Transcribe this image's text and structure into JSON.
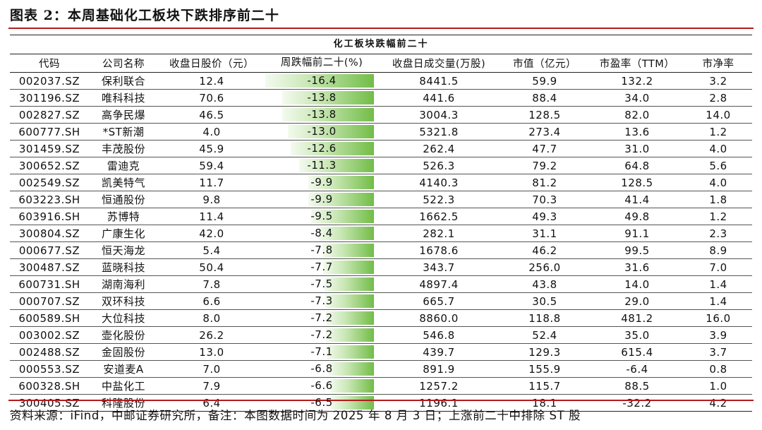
{
  "figure_title": "图表 2：本周基础化工板块下跌排序前二十",
  "table_title": "化工板块跌幅前二十",
  "headers": [
    "代码",
    "公司名称",
    "收盘日股价（元）",
    "周跌幅前二十(%)",
    "收盘日成交量(万股)",
    "市值（亿元）",
    "市盈率（TTM）",
    "市净率"
  ],
  "rows": [
    {
      "code": "002037.SZ",
      "name": "保利联合",
      "price": "12.4",
      "change": "-16.4",
      "volume": "8441.5",
      "mcap": "59.9",
      "pe": "132.2",
      "pb": "3.2"
    },
    {
      "code": "301196.SZ",
      "name": "唯科科技",
      "price": "70.6",
      "change": "-13.8",
      "volume": "441.6",
      "mcap": "88.4",
      "pe": "34.0",
      "pb": "2.8"
    },
    {
      "code": "002827.SZ",
      "name": "高争民爆",
      "price": "46.5",
      "change": "-13.8",
      "volume": "3004.3",
      "mcap": "128.5",
      "pe": "82.0",
      "pb": "14.0"
    },
    {
      "code": "600777.SH",
      "name": "*ST新潮",
      "price": "4.0",
      "change": "-13.0",
      "volume": "5321.8",
      "mcap": "273.4",
      "pe": "13.6",
      "pb": "1.2"
    },
    {
      "code": "301459.SZ",
      "name": "丰茂股份",
      "price": "45.9",
      "change": "-12.6",
      "volume": "262.4",
      "mcap": "47.7",
      "pe": "31.0",
      "pb": "4.0"
    },
    {
      "code": "300652.SZ",
      "name": "雷迪克",
      "price": "59.4",
      "change": "-11.3",
      "volume": "526.3",
      "mcap": "79.2",
      "pe": "64.8",
      "pb": "5.6"
    },
    {
      "code": "002549.SZ",
      "name": "凯美特气",
      "price": "11.7",
      "change": "-9.9",
      "volume": "4140.3",
      "mcap": "81.2",
      "pe": "128.5",
      "pb": "4.0"
    },
    {
      "code": "603223.SH",
      "name": "恒通股份",
      "price": "9.8",
      "change": "-9.9",
      "volume": "522.3",
      "mcap": "70.3",
      "pe": "41.4",
      "pb": "1.8"
    },
    {
      "code": "603916.SH",
      "name": "苏博特",
      "price": "11.4",
      "change": "-9.5",
      "volume": "1662.5",
      "mcap": "49.3",
      "pe": "49.8",
      "pb": "1.2"
    },
    {
      "code": "300804.SZ",
      "name": "广康生化",
      "price": "42.0",
      "change": "-8.4",
      "volume": "282.1",
      "mcap": "31.1",
      "pe": "91.1",
      "pb": "2.3"
    },
    {
      "code": "000677.SZ",
      "name": "恒天海龙",
      "price": "5.4",
      "change": "-7.8",
      "volume": "1678.6",
      "mcap": "46.2",
      "pe": "99.5",
      "pb": "8.9"
    },
    {
      "code": "300487.SZ",
      "name": "蓝晓科技",
      "price": "50.4",
      "change": "-7.7",
      "volume": "343.7",
      "mcap": "256.0",
      "pe": "31.6",
      "pb": "7.0"
    },
    {
      "code": "600731.SH",
      "name": "湖南海利",
      "price": "7.8",
      "change": "-7.5",
      "volume": "4897.4",
      "mcap": "43.8",
      "pe": "14.0",
      "pb": "1.4"
    },
    {
      "code": "000707.SZ",
      "name": "双环科技",
      "price": "6.6",
      "change": "-7.3",
      "volume": "665.7",
      "mcap": "30.5",
      "pe": "29.0",
      "pb": "1.4"
    },
    {
      "code": "600589.SH",
      "name": "大位科技",
      "price": "8.0",
      "change": "-7.2",
      "volume": "8860.0",
      "mcap": "118.8",
      "pe": "481.2",
      "pb": "16.0"
    },
    {
      "code": "003002.SZ",
      "name": "壶化股份",
      "price": "26.2",
      "change": "-7.2",
      "volume": "546.8",
      "mcap": "52.4",
      "pe": "35.0",
      "pb": "3.9"
    },
    {
      "code": "002488.SZ",
      "name": "金固股份",
      "price": "13.0",
      "change": "-7.1",
      "volume": "439.7",
      "mcap": "129.3",
      "pe": "615.4",
      "pb": "3.7"
    },
    {
      "code": "000553.SZ",
      "name": "安道麦A",
      "price": "7.0",
      "change": "-6.8",
      "volume": "891.9",
      "mcap": "155.9",
      "pe": "-6.4",
      "pb": "0.8"
    },
    {
      "code": "600328.SH",
      "name": "中盐化工",
      "price": "7.9",
      "change": "-6.6",
      "volume": "1257.2",
      "mcap": "115.7",
      "pe": "88.5",
      "pb": "1.0"
    },
    {
      "code": "300405.SZ",
      "name": "科隆股份",
      "price": "6.4",
      "change": "-6.5",
      "volume": "1196.1",
      "mcap": "18.1",
      "pe": "-32.2",
      "pb": "4.2"
    }
  ],
  "bar_max_abs": 16.4,
  "bar_color": "#72bd47",
  "rule_color": "#b31b1b",
  "source": "资料来源：iFind，中邮证券研究所，备注：本图数据时间为 2025 年 8 月 3 日；上涨前二十中排除 ST 股"
}
